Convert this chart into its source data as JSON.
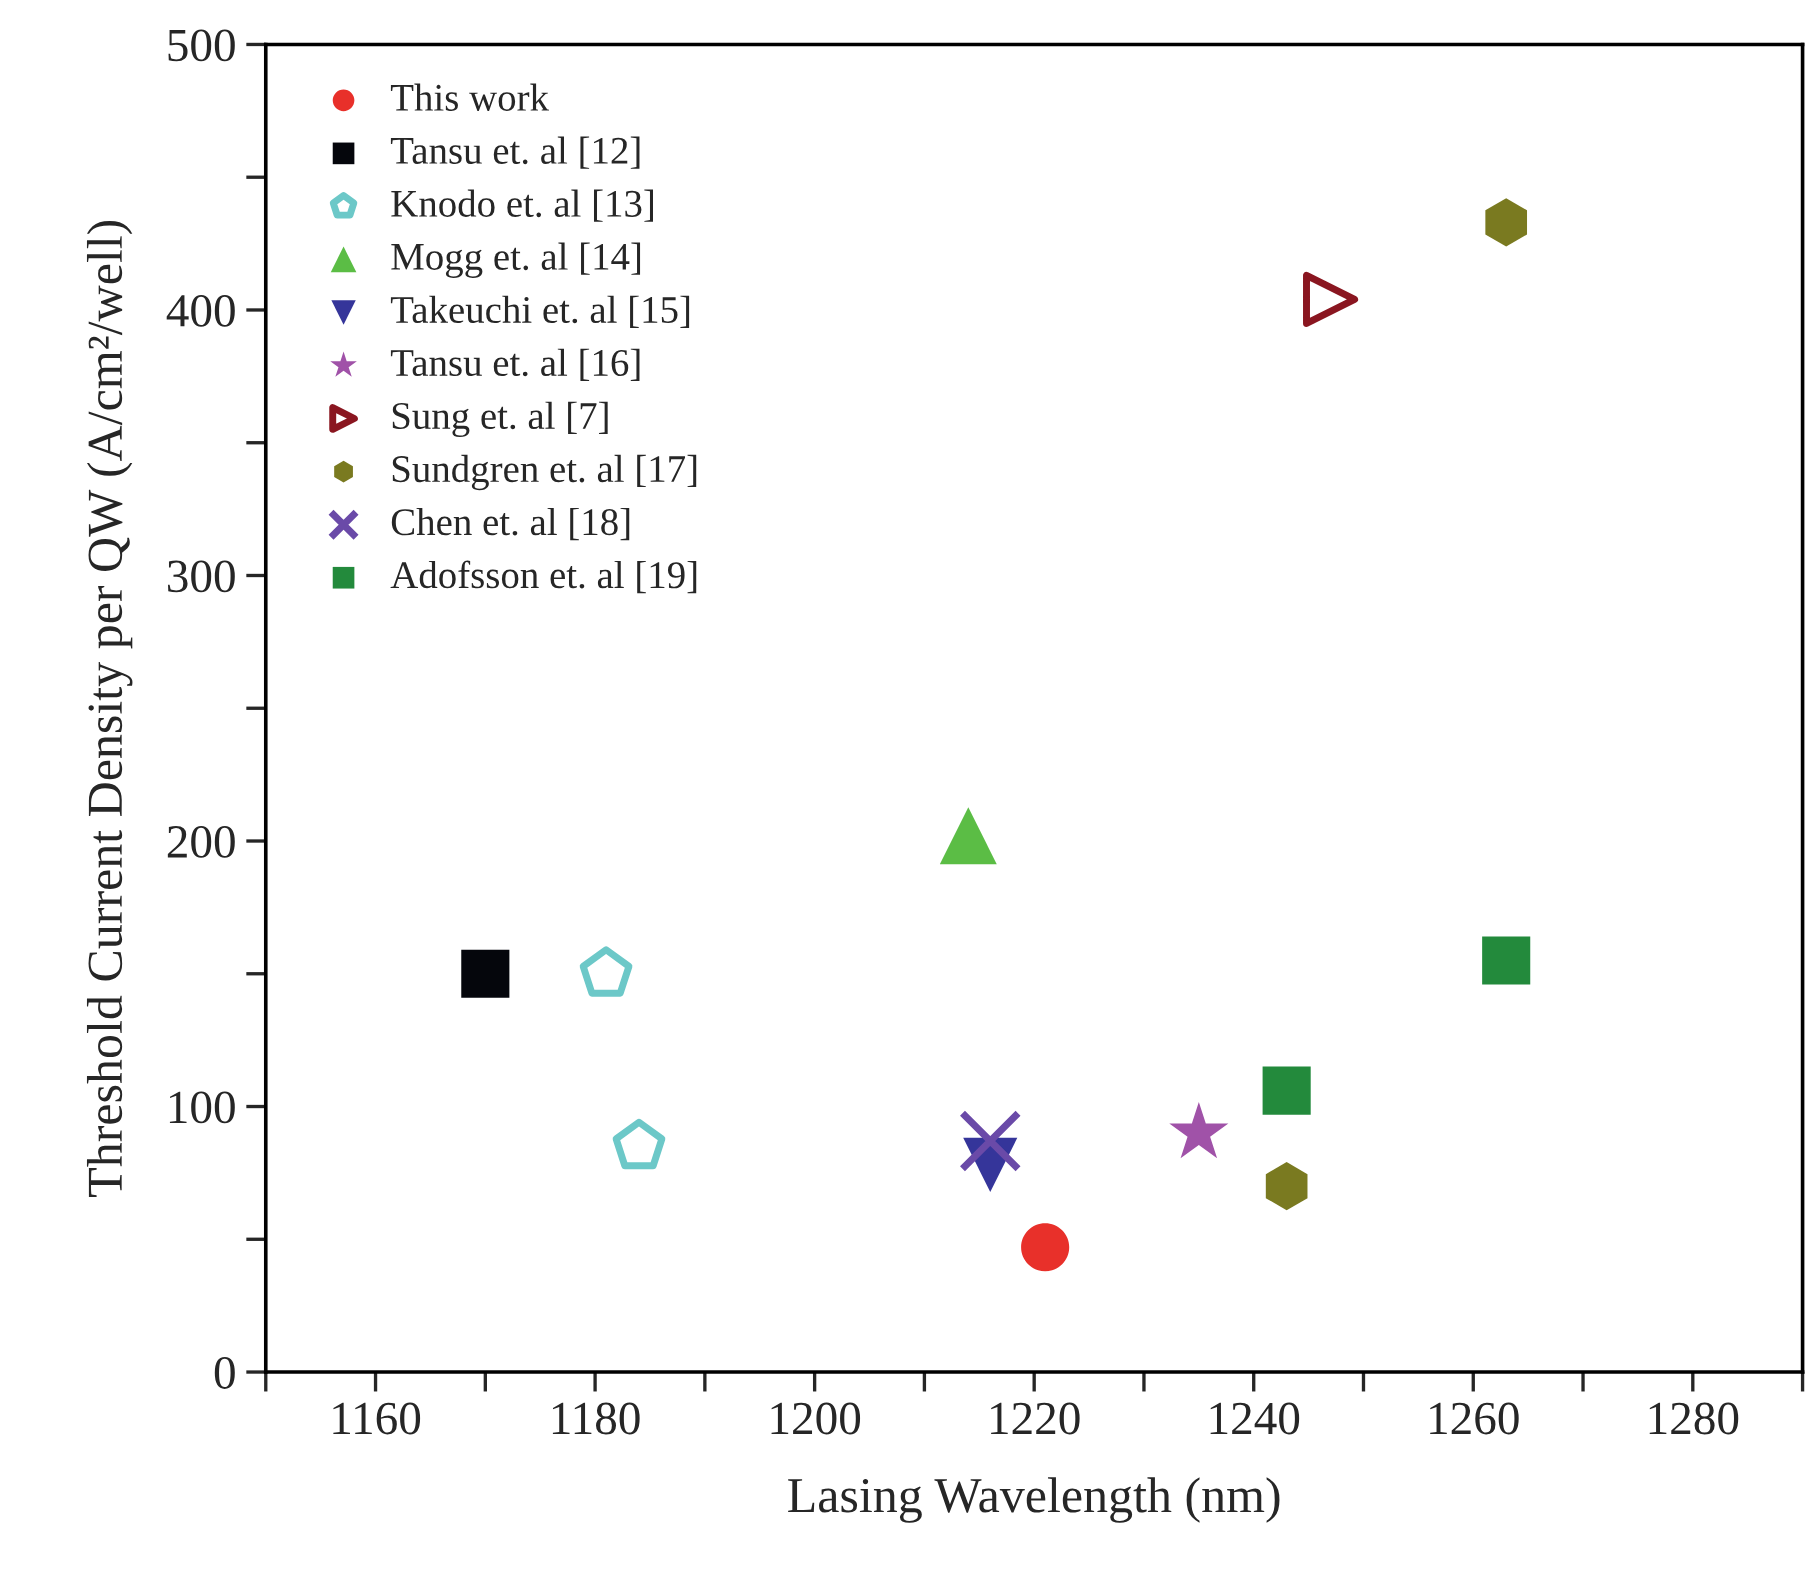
{
  "chart_data": {
    "type": "scatter",
    "xlabel": "Lasing Wavelength (nm)",
    "ylabel": "Threshold Current Density per QW (A/cm²/well)",
    "xlim": [
      1150,
      1290
    ],
    "xticks": [
      {
        "value": 1150,
        "label": null
      },
      1160,
      {
        "value": 1170,
        "label": null
      },
      1180,
      {
        "value": 1190,
        "label": null
      },
      1200,
      {
        "value": 1210,
        "label": null
      },
      1220,
      {
        "value": 1230,
        "label": null
      },
      1240,
      {
        "value": 1250,
        "label": null
      },
      1260,
      {
        "value": 1270,
        "label": null
      },
      1280,
      {
        "value": 1290,
        "label": null
      }
    ],
    "ylim": [
      0,
      500
    ],
    "yticks": [
      0,
      {
        "value": 50,
        "label": null
      },
      100,
      {
        "value": 150,
        "label": null
      },
      200,
      {
        "value": 250,
        "label": null
      },
      300,
      {
        "value": 350,
        "label": null
      },
      400,
      {
        "value": 450,
        "label": null
      },
      500
    ],
    "grid": false,
    "legend": "top left",
    "series": [
      {
        "name": "This work",
        "color": "#e8302a",
        "marker": "circle",
        "x": [
          1221
        ],
        "values": [
          47
        ]
      },
      {
        "name": "Tansu et. al [12]",
        "color": "#05060c",
        "marker": "square",
        "x": [
          1170
        ],
        "values": [
          150
        ]
      },
      {
        "name": "Knodo et. al [13]",
        "color": "#6cc8c8",
        "x": [
          1181,
          1184
        ],
        "values": [
          150,
          85
        ]
      },
      {
        "name": "Mogg et. al [14]",
        "color": "#5bbd45",
        "marker": "triangle",
        "x": [
          1214
        ],
        "values": [
          202
        ]
      },
      {
        "name": "Takeuchi et. al [15]",
        "color": "#35359a",
        "marker": "triangle_down",
        "x": [
          1216
        ],
        "values": [
          78
        ]
      },
      {
        "name": "Tansu et. al [16]",
        "color": "#a052a8",
        "marker": "star",
        "x": [
          1235
        ],
        "values": [
          90
        ]
      },
      {
        "name": "Sung et. al [7]",
        "color": "#8a1620",
        "marker": "triangle_right_open",
        "x": [
          1247
        ],
        "values": [
          404
        ]
      },
      {
        "name": "Sundgren et. al [17]",
        "color": "#7a7a20",
        "x": [
          1263,
          1243
        ],
        "values": [
          433,
          70
        ]
      },
      {
        "name": "Chen et. al [18]",
        "color": "#6a4aa8",
        "marker": "cross",
        "x": [
          1216
        ],
        "values": [
          87
        ]
      },
      {
        "name": "Adofsson et. al [19]",
        "color": "#238a3c",
        "marker": "square",
        "x": [
          1243,
          1263
        ],
        "values": [
          106,
          155
        ]
      }
    ]
  }
}
